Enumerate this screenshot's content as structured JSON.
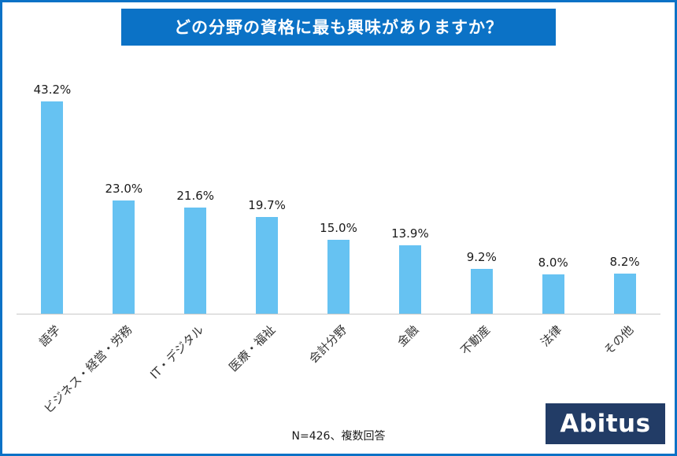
{
  "header": {
    "title": "どの分野の資格に最も興味がありますか？",
    "bg_color": "#0b72c6",
    "text_color": "#ffffff"
  },
  "chart_data": {
    "type": "bar",
    "title": "どの分野の資格に最も興味がありますか？",
    "categories": [
      "語学",
      "ビジネス・経営・労務",
      "IT・デジタル",
      "医療・福祉",
      "会計分野",
      "金融",
      "不動産",
      "法律",
      "その他"
    ],
    "values": [
      43.2,
      23.0,
      21.6,
      19.7,
      15.0,
      13.9,
      9.2,
      8.0,
      8.2
    ],
    "value_labels": [
      "43.2%",
      "23.0%",
      "21.6%",
      "19.7%",
      "15.0%",
      "13.9%",
      "9.2%",
      "8.0%",
      "8.2%"
    ],
    "xlabel": "",
    "ylabel": "",
    "ylim": [
      0,
      45
    ],
    "bar_color": "#66c2f2",
    "grid": false,
    "legend": false,
    "x_tick_rotation": 45
  },
  "footer": {
    "note": "N=426、複数回答",
    "logo_text": "Abitus",
    "logo_bg": "#223c66"
  }
}
